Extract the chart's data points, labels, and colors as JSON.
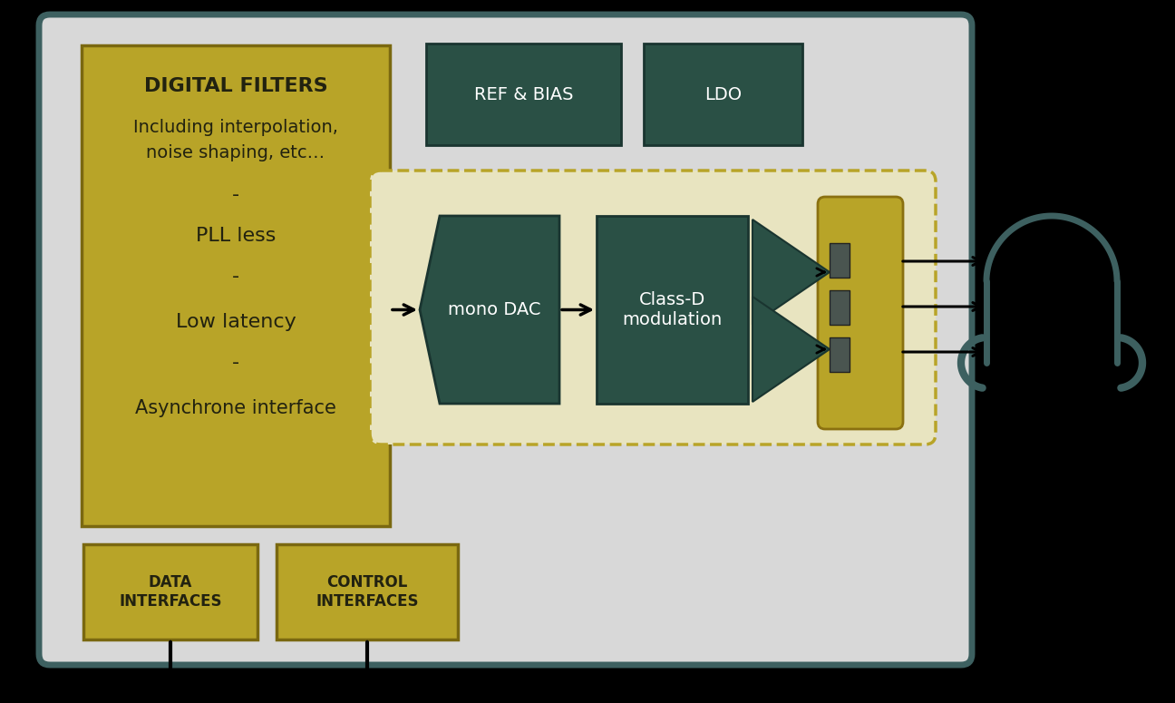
{
  "bg_color": "black",
  "outer_box_edge": "#3d6060",
  "outer_box_fill": "#d8d8d8",
  "gold_color": "#b8a428",
  "dark_teal": "#2a5045",
  "dashed_fill": "#e8e4c0",
  "dashed_edge": "#b8a428",
  "ref_bias_text": "REF & BIAS",
  "ldo_text": "LDO",
  "mono_dac_text": "mono DAC",
  "class_d_text": "Class-D\nmodulation",
  "data_if_text": "DATA\nINTERFACES",
  "control_if_text": "CONTROL\nINTERFACES",
  "df_line1": "DIGITAL FILTERS",
  "df_line2": "Including interpolation,",
  "df_line3": "noise shaping, etc…",
  "df_line4": "-",
  "df_line5": "PLL less",
  "df_line6": "-",
  "df_line7": "Low latency",
  "df_line8": "-",
  "df_line9": "Asynchrone interface"
}
